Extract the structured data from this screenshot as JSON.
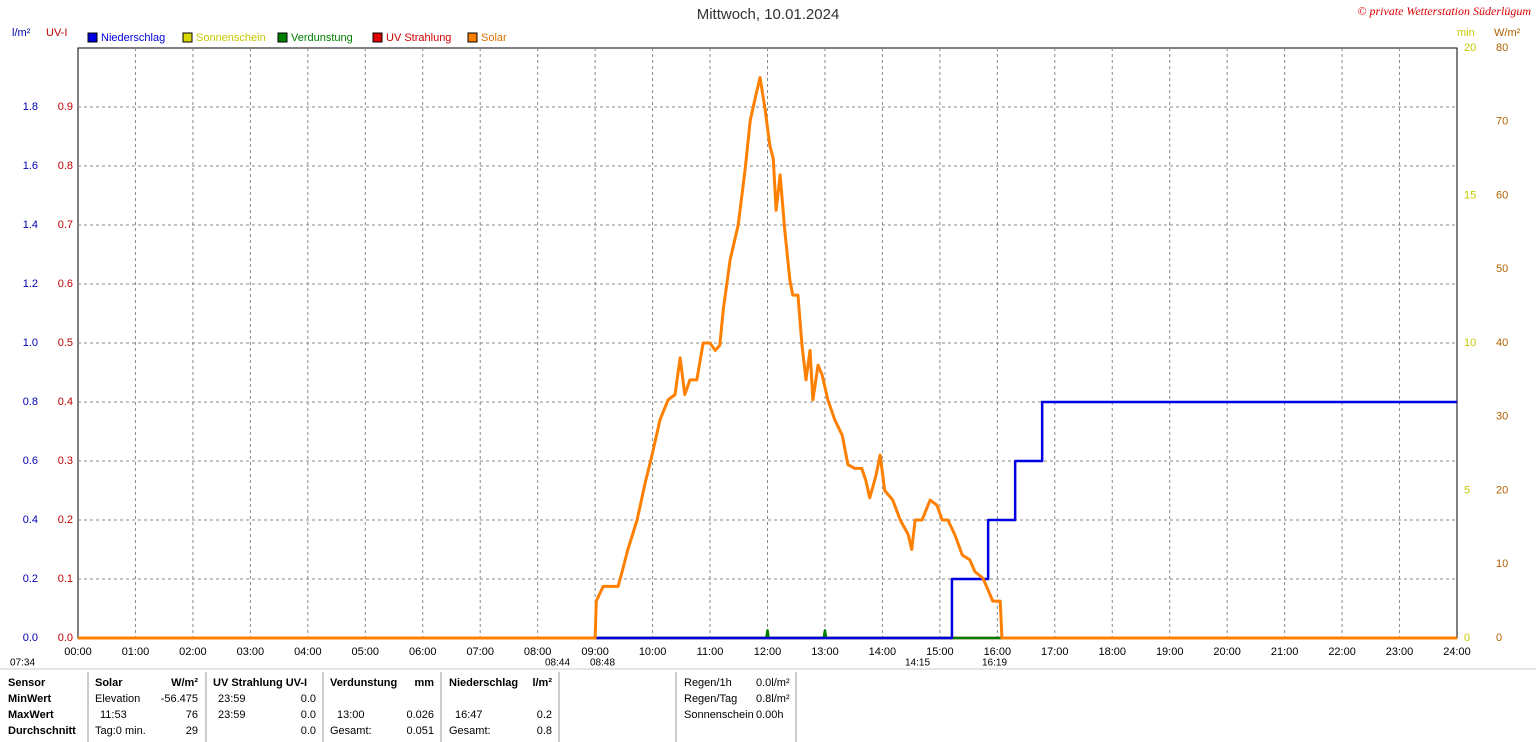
{
  "chart_data": {
    "type": "line",
    "title": "Mittwoch, 10.01.2024",
    "copyright": "© private Wetterstation Süderlügum",
    "y_unit": "l/m²",
    "y3_unit": "UV-I",
    "y2_unit": "min",
    "y4_unit": "W/m²",
    "xlim": [
      0,
      24
    ],
    "xticks": [
      {
        "value": 0,
        "label": "00:00"
      },
      {
        "value": 1,
        "label": "01:00"
      },
      {
        "value": 2,
        "label": "02:00"
      },
      {
        "value": 3,
        "label": "03:00"
      },
      {
        "value": 4,
        "label": "04:00"
      },
      {
        "value": 5,
        "label": "05:00"
      },
      {
        "value": 6,
        "label": "06:00"
      },
      {
        "value": 7,
        "label": "07:00"
      },
      {
        "value": 8,
        "label": "08:00"
      },
      {
        "value": 9,
        "label": "09:00"
      },
      {
        "value": 10,
        "label": "10:00"
      },
      {
        "value": 11,
        "label": "11:00"
      },
      {
        "value": 12,
        "label": "12:00"
      },
      {
        "value": 13,
        "label": "13:00"
      },
      {
        "value": 14,
        "label": "14:00"
      },
      {
        "value": 15,
        "label": "15:00"
      },
      {
        "value": 16,
        "label": "16:00"
      },
      {
        "value": 17,
        "label": "17:00"
      },
      {
        "value": 18,
        "label": "18:00"
      },
      {
        "value": 19,
        "label": "19:00"
      },
      {
        "value": 20,
        "label": "20:00"
      },
      {
        "value": 21,
        "label": "21:00"
      },
      {
        "value": 22,
        "label": "22:00"
      },
      {
        "value": 23,
        "label": "23:00"
      },
      {
        "value": 24,
        "label": "24:00"
      }
    ],
    "ylim": [
      0,
      2
    ],
    "yticks": [
      {
        "value": 0,
        "label": "0.0"
      },
      0.2,
      0.4,
      0.6,
      0.8,
      {
        "value": 1,
        "label": "1.0"
      },
      1.2,
      1.4,
      1.6,
      1.8
    ],
    "y3lim": [
      0,
      1
    ],
    "y3ticks": [
      {
        "value": 0,
        "label": "0.0"
      },
      0.1,
      0.2,
      0.3,
      0.4,
      0.5,
      0.6,
      0.7,
      0.8,
      0.9
    ],
    "y2lim": [
      0,
      20
    ],
    "y2ticks": [
      0,
      5,
      10,
      15,
      20
    ],
    "y4lim": [
      0,
      80
    ],
    "y4ticks": [
      0,
      10,
      20,
      30,
      40,
      50,
      60,
      70,
      80
    ],
    "grid": true,
    "series": [
      {
        "name": "Niederschlag",
        "color": "#0000e0",
        "axis": "y",
        "x": [
          0,
          15.21,
          15.21,
          15.84,
          15.84,
          16.31,
          16.31,
          16.78,
          16.78,
          24
        ],
        "values": [
          0,
          0,
          0.2,
          0.2,
          0.4,
          0.4,
          0.6,
          0.6,
          0.8,
          0.8
        ]
      },
      {
        "name": "Sonnenschein",
        "color": "#d8d800",
        "axis": "y2",
        "x": [
          20,
          24
        ],
        "values": [
          0,
          0
        ]
      },
      {
        "name": "Verdunstung",
        "color": "#008000",
        "axis": "y",
        "x": [
          0,
          11.98,
          12.0,
          12.02,
          12.98,
          13.0,
          13.02,
          24
        ],
        "values": [
          0,
          0,
          0.026,
          0,
          0,
          0.026,
          0,
          0
        ]
      },
      {
        "name": "UV Strahlung",
        "color": "#e00000",
        "axis": "y3",
        "x": [
          0,
          24
        ],
        "values": [
          0,
          0
        ]
      },
      {
        "name": "Solar",
        "color": "#ff8000",
        "axis": "y4",
        "x": [
          0,
          9.0,
          9.02,
          9.14,
          9.4,
          9.47,
          9.57,
          9.73,
          9.87,
          9.99,
          10.13,
          10.27,
          10.39,
          10.48,
          10.56,
          10.65,
          10.77,
          10.88,
          11.0,
          11.09,
          11.17,
          11.23,
          11.35,
          11.49,
          11.61,
          11.7,
          11.78,
          11.87,
          11.96,
          12.04,
          12.1,
          12.15,
          12.22,
          12.3,
          12.39,
          12.44,
          12.53,
          12.6,
          12.67,
          12.74,
          12.79,
          12.88,
          12.95,
          13.05,
          13.17,
          13.3,
          13.4,
          13.52,
          13.64,
          13.71,
          13.78,
          13.89,
          13.96,
          14.04,
          14.18,
          14.31,
          14.45,
          14.51,
          14.57,
          14.69,
          14.83,
          14.95,
          15.04,
          15.14,
          15.26,
          15.39,
          15.52,
          15.61,
          15.75,
          15.84,
          15.92,
          16.05,
          16.08,
          24
        ],
        "values": [
          0,
          0,
          5,
          7,
          7,
          9,
          12,
          16,
          21,
          24.8,
          29.6,
          32.3,
          33,
          38,
          33,
          35,
          35,
          40,
          40,
          39,
          39.7,
          44.5,
          51.3,
          56,
          63.5,
          70.2,
          73,
          76,
          71.6,
          66.8,
          65,
          58,
          62.8,
          55.3,
          48.5,
          46.5,
          46.5,
          39.7,
          35,
          39,
          32.3,
          37,
          35.7,
          32.3,
          29.6,
          27.5,
          23.5,
          23,
          23,
          21.4,
          19,
          22.1,
          24.8,
          20,
          18.7,
          16,
          14,
          12,
          16,
          16,
          18.7,
          18,
          16,
          16,
          14,
          11.25,
          10.6,
          9,
          8.1,
          6.5,
          5,
          5,
          0,
          0
        ]
      }
    ],
    "annotations": [
      "07:34",
      "08:44",
      "08:48",
      "14:15",
      "16:19"
    ]
  },
  "stats": {
    "row_labels": [
      "Sensor",
      "MinWert",
      "MaxWert",
      "Durchschnitt"
    ],
    "solar": {
      "name": "Solar",
      "unit": "W/m²",
      "min_label": "Elevation",
      "min": "-56.475",
      "max_time": "11:53",
      "max": "76",
      "avg_label": "Tag:0 min.",
      "avg": "29"
    },
    "uv": {
      "name": "UV Strahlung UV-I",
      "min_time": "23:59",
      "min": "0.0",
      "max_time": "23:59",
      "max": "0.0",
      "avg": "0.0"
    },
    "verdunstung": {
      "name": "Verdunstung",
      "unit": "mm",
      "max_time": "13:00",
      "max": "0.026",
      "avg_label": "Gesamt:",
      "avg": "0.051"
    },
    "niederschlag": {
      "name": "Niederschlag",
      "unit": "l/m²",
      "max_time": "16:47",
      "max": "0.2",
      "avg_label": "Gesamt:",
      "avg": "0.8"
    },
    "summary": [
      [
        "Regen/1h",
        "0.0l/m²"
      ],
      [
        "Regen/Tag",
        "0.8l/m²"
      ],
      [
        "Sonnenschein",
        "0.00h"
      ]
    ]
  }
}
